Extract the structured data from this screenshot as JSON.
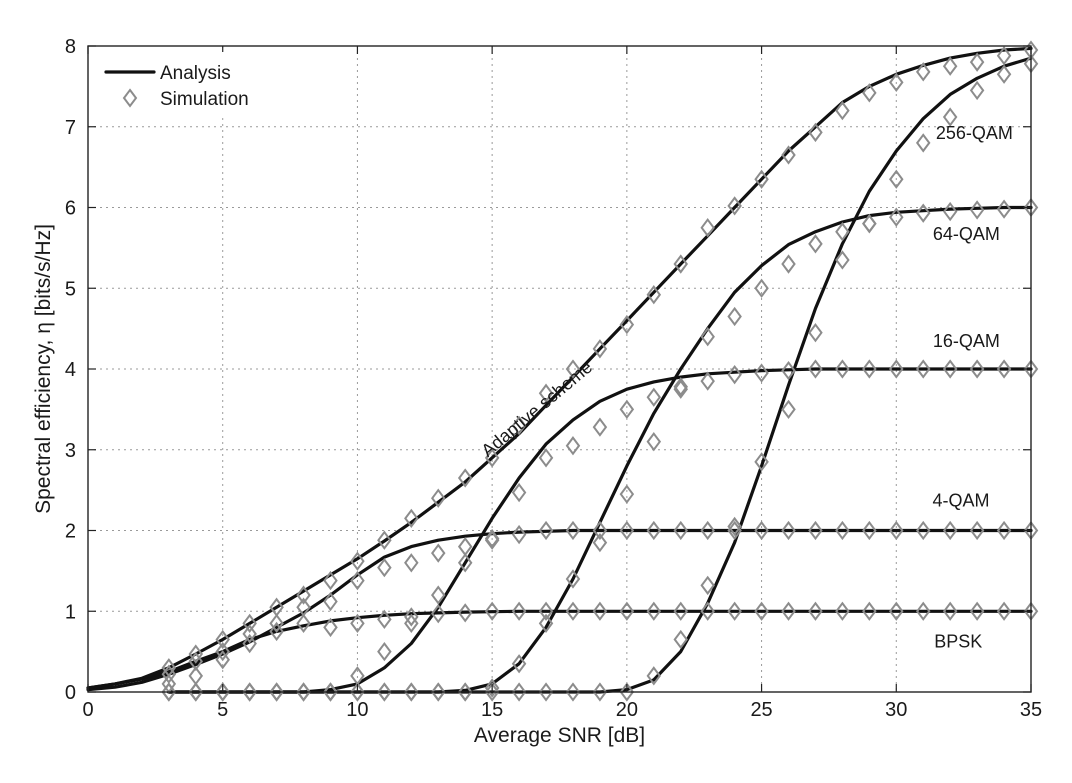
{
  "chart_data": {
    "type": "line",
    "title": "",
    "xlabel": "Average SNR [dB]",
    "ylabel": "Spectral efficiency, η [bits/s/Hz]",
    "xlim": [
      0,
      35
    ],
    "ylim": [
      0,
      8
    ],
    "xticks": [
      0,
      5,
      10,
      15,
      20,
      25,
      30,
      35
    ],
    "yticks": [
      0,
      1,
      2,
      3,
      4,
      5,
      6,
      7,
      8
    ],
    "grid": true,
    "legend": {
      "position": "top-left",
      "entries": [
        {
          "label": "Analysis",
          "style": "solid-line"
        },
        {
          "label": "Simulation",
          "style": "diamond-marker"
        }
      ]
    },
    "annotations": [
      {
        "text": "256-QAM",
        "x": 32.9,
        "y": 6.85
      },
      {
        "text": "64-QAM",
        "x": 32.6,
        "y": 5.6
      },
      {
        "text": "16-QAM",
        "x": 32.6,
        "y": 4.27
      },
      {
        "text": "4-QAM",
        "x": 32.4,
        "y": 2.3
      },
      {
        "text": "BPSK",
        "x": 32.3,
        "y": 0.55
      },
      {
        "text": "Adaptive scheme",
        "x": 16.8,
        "y": 3.45,
        "rotation": -40
      }
    ],
    "series": [
      {
        "kind": "analysis",
        "line_color": "#111111",
        "x": [
          0,
          1,
          2,
          3,
          4,
          5,
          6,
          7,
          8,
          9,
          10,
          11,
          12,
          13,
          14,
          15,
          16,
          17,
          18,
          19,
          20,
          21,
          22,
          23,
          24,
          25,
          26,
          27,
          28,
          29,
          30,
          31,
          32,
          33,
          34,
          35
        ],
        "y": [
          0.05,
          0.1,
          0.16,
          0.25,
          0.38,
          0.5,
          0.65,
          0.75,
          0.82,
          0.88,
          0.92,
          0.95,
          0.97,
          0.98,
          0.99,
          0.995,
          1,
          1,
          1,
          1,
          1,
          1,
          1,
          1,
          1,
          1,
          1,
          1,
          1,
          1,
          1,
          1,
          1,
          1,
          1,
          1
        ],
        "sim_x": [
          3,
          4,
          5,
          6,
          7,
          8,
          9,
          10,
          11,
          12,
          13,
          14,
          15,
          16,
          17,
          18,
          19,
          20,
          21,
          22,
          23,
          24,
          25,
          26,
          27,
          28,
          29,
          30,
          31,
          32,
          33,
          34,
          35
        ],
        "sim_y": [
          0.1,
          0.2,
          0.4,
          0.6,
          0.75,
          0.85,
          0.8,
          0.85,
          0.9,
          0.93,
          0.97,
          0.98,
          1,
          1,
          1,
          1,
          1,
          1,
          1,
          1,
          1,
          1,
          1,
          1,
          1,
          1,
          1,
          1,
          1,
          1,
          1,
          1,
          1
        ]
      },
      {
        "kind": "analysis",
        "line_color": "#111111",
        "x": [
          0,
          1,
          2,
          3,
          4,
          5,
          6,
          7,
          8,
          9,
          10,
          11,
          12,
          13,
          14,
          15,
          16,
          17,
          18,
          19,
          20,
          21,
          22,
          23,
          24,
          25,
          26,
          27,
          28,
          29,
          30,
          31,
          32,
          33,
          34,
          35
        ],
        "y": [
          0.03,
          0.06,
          0.12,
          0.22,
          0.34,
          0.47,
          0.62,
          0.8,
          0.98,
          1.2,
          1.45,
          1.67,
          1.8,
          1.88,
          1.93,
          1.96,
          1.98,
          1.99,
          2,
          2,
          2,
          2,
          2,
          2,
          2,
          2,
          2,
          2,
          2,
          2,
          2,
          2,
          2,
          2,
          2,
          2
        ],
        "sim_x": [
          3,
          4,
          5,
          6,
          7,
          8,
          9,
          10,
          11,
          12,
          13,
          14,
          15,
          16,
          17,
          18,
          19,
          20,
          21,
          22,
          23,
          24,
          25,
          26,
          27,
          28,
          29,
          30,
          31,
          32,
          33,
          34,
          35
        ],
        "sim_y": [
          0.22,
          0.38,
          0.5,
          0.72,
          0.85,
          1.05,
          1.12,
          1.38,
          1.54,
          1.6,
          1.72,
          1.8,
          1.9,
          1.95,
          2,
          2,
          2,
          2,
          2,
          2,
          2,
          2,
          2,
          2,
          2,
          2,
          2,
          2,
          2,
          2,
          2,
          2,
          2
        ]
      },
      {
        "kind": "analysis",
        "line_color": "#111111",
        "x": [
          3,
          4,
          5,
          6,
          7,
          8,
          9,
          10,
          11,
          12,
          13,
          14,
          15,
          16,
          17,
          18,
          19,
          20,
          21,
          22,
          23,
          24,
          25,
          26,
          27,
          28,
          29,
          30,
          31,
          32,
          33,
          34,
          35
        ],
        "y": [
          0,
          0,
          0,
          0,
          0,
          0,
          0.03,
          0.1,
          0.3,
          0.6,
          1.05,
          1.6,
          2.15,
          2.65,
          3.07,
          3.37,
          3.6,
          3.75,
          3.84,
          3.9,
          3.94,
          3.96,
          3.98,
          3.99,
          4,
          4,
          4,
          4,
          4,
          4,
          4,
          4,
          4
        ],
        "sim_x": [
          3,
          4,
          5,
          6,
          7,
          8,
          9,
          10,
          11,
          12,
          13,
          14,
          15,
          16,
          17,
          18,
          19,
          20,
          21,
          22,
          23,
          24,
          25,
          26,
          27,
          28,
          29,
          30,
          31,
          32,
          33,
          34,
          35
        ],
        "sim_y": [
          0,
          0,
          0,
          0,
          0,
          0,
          0,
          0.2,
          0.5,
          0.85,
          1.2,
          1.6,
          1.88,
          2.47,
          2.9,
          3.05,
          3.28,
          3.5,
          3.65,
          3.75,
          3.85,
          3.93,
          3.95,
          3.98,
          4,
          4,
          4,
          4,
          4,
          4,
          4,
          4,
          4
        ]
      },
      {
        "kind": "analysis",
        "line_color": "#111111",
        "x": [
          3,
          4,
          5,
          6,
          7,
          8,
          9,
          10,
          11,
          12,
          13,
          14,
          15,
          16,
          17,
          18,
          19,
          20,
          21,
          22,
          23,
          24,
          25,
          26,
          27,
          28,
          29,
          30,
          31,
          32,
          33,
          34,
          35
        ],
        "y": [
          0,
          0,
          0,
          0,
          0,
          0,
          0,
          0,
          0,
          0,
          0,
          0.02,
          0.1,
          0.35,
          0.8,
          1.4,
          2.1,
          2.8,
          3.45,
          4.0,
          4.5,
          4.95,
          5.28,
          5.54,
          5.7,
          5.82,
          5.9,
          5.94,
          5.96,
          5.98,
          5.99,
          6,
          6
        ],
        "sim_x": [
          3,
          4,
          5,
          6,
          7,
          8,
          9,
          10,
          11,
          12,
          13,
          14,
          15,
          16,
          17,
          18,
          19,
          20,
          21,
          22,
          23,
          24,
          25,
          26,
          27,
          28,
          29,
          30,
          31,
          32,
          33,
          34,
          35
        ],
        "sim_y": [
          0,
          0,
          0,
          0,
          0,
          0,
          0,
          0,
          0,
          0,
          0,
          0,
          0.05,
          0.35,
          0.85,
          1.4,
          1.85,
          2.45,
          3.1,
          3.78,
          4.4,
          4.65,
          5.0,
          5.3,
          5.55,
          5.7,
          5.8,
          5.88,
          5.93,
          5.95,
          5.97,
          5.98,
          6
        ]
      },
      {
        "kind": "analysis",
        "line_color": "#111111",
        "x": [
          3,
          4,
          5,
          6,
          7,
          8,
          9,
          10,
          11,
          12,
          13,
          14,
          15,
          16,
          17,
          18,
          19,
          20,
          21,
          22,
          23,
          24,
          25,
          26,
          27,
          28,
          29,
          30,
          31,
          32,
          33,
          34,
          35
        ],
        "y": [
          0,
          0,
          0,
          0,
          0,
          0,
          0,
          0,
          0,
          0,
          0,
          0,
          0,
          0,
          0,
          0,
          0,
          0.03,
          0.15,
          0.5,
          1.1,
          1.85,
          2.8,
          3.8,
          4.75,
          5.55,
          6.2,
          6.7,
          7.1,
          7.4,
          7.6,
          7.75,
          7.85
        ],
        "sim_x": [
          3,
          4,
          5,
          6,
          7,
          8,
          9,
          10,
          11,
          12,
          13,
          14,
          15,
          16,
          17,
          18,
          19,
          20,
          21,
          22,
          23,
          24,
          25,
          26,
          27,
          28,
          29,
          30,
          31,
          32,
          33,
          34,
          35
        ],
        "sim_y": [
          0,
          0,
          0,
          0,
          0,
          0,
          0,
          0,
          0,
          0,
          0,
          0,
          0,
          0,
          0,
          0,
          0,
          0,
          0.2,
          0.65,
          1.32,
          2.05,
          2.85,
          3.5,
          4.45,
          5.35,
          5.8,
          6.35,
          6.8,
          7.12,
          7.45,
          7.65,
          7.78
        ]
      },
      {
        "kind": "analysis",
        "line_color": "#111111",
        "x": [
          0,
          1,
          2,
          3,
          4,
          5,
          6,
          7,
          8,
          9,
          10,
          11,
          12,
          13,
          14,
          15,
          16,
          17,
          18,
          19,
          20,
          21,
          22,
          23,
          24,
          25,
          26,
          27,
          28,
          29,
          30,
          31,
          32,
          33,
          34,
          35
        ],
        "y": [
          0.05,
          0.1,
          0.17,
          0.3,
          0.47,
          0.65,
          0.85,
          1.05,
          1.25,
          1.45,
          1.65,
          1.87,
          2.1,
          2.35,
          2.6,
          2.9,
          3.2,
          3.55,
          3.9,
          4.25,
          4.6,
          4.95,
          5.3,
          5.65,
          6.0,
          6.35,
          6.7,
          7.0,
          7.3,
          7.5,
          7.65,
          7.76,
          7.85,
          7.91,
          7.95,
          7.97
        ],
        "sim_x": [
          3,
          4,
          5,
          6,
          7,
          8,
          9,
          10,
          11,
          12,
          13,
          14,
          15,
          16,
          17,
          18,
          19,
          20,
          21,
          22,
          23,
          24,
          25,
          26,
          27,
          28,
          29,
          30,
          31,
          32,
          33,
          34,
          35
        ],
        "sim_y": [
          0.3,
          0.47,
          0.65,
          0.85,
          1.05,
          1.2,
          1.38,
          1.62,
          1.88,
          2.15,
          2.4,
          2.65,
          2.9,
          3.3,
          3.7,
          4.0,
          4.25,
          4.55,
          4.92,
          5.3,
          5.75,
          6.02,
          6.35,
          6.65,
          6.93,
          7.2,
          7.42,
          7.55,
          7.68,
          7.75,
          7.8,
          7.88,
          7.95
        ]
      }
    ]
  }
}
